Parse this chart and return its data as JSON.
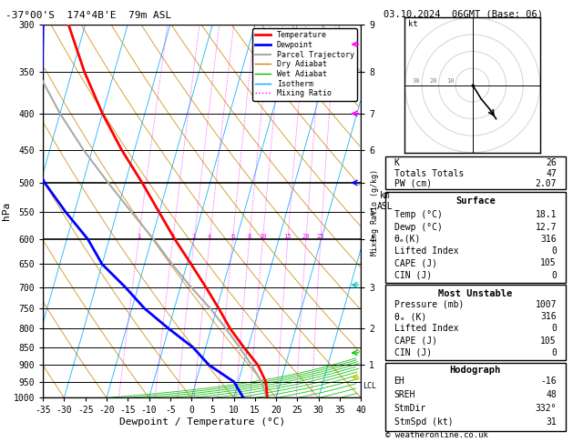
{
  "title_left": "-37°00'S  174°4B'E  79m ASL",
  "title_right": "03.10.2024  06GMT (Base: 06)",
  "xlabel": "Dewpoint / Temperature (°C)",
  "ylabel_left": "hPa",
  "pressure_levels": [
    300,
    350,
    400,
    450,
    500,
    550,
    600,
    650,
    700,
    750,
    800,
    850,
    900,
    950,
    1000
  ],
  "xmin": -35,
  "xmax": 40,
  "temp_profile_T": [
    18.1,
    16.5,
    13.5,
    9.0,
    4.5,
    0.5,
    -4.0,
    -9.0,
    -14.5,
    -20.0,
    -26.0,
    -33.0,
    -40.0,
    -47.0,
    -54.0
  ],
  "temp_profile_P": [
    1007,
    950,
    900,
    850,
    800,
    750,
    700,
    650,
    600,
    550,
    500,
    450,
    400,
    350,
    300
  ],
  "dewp_profile_T": [
    12.7,
    9.0,
    2.0,
    -3.0,
    -10.0,
    -17.0,
    -23.0,
    -30.0,
    -35.0,
    -42.0,
    -49.0,
    -55.0,
    -57.0,
    -57.0,
    -60.0
  ],
  "dewp_profile_P": [
    1007,
    950,
    900,
    850,
    800,
    750,
    700,
    650,
    600,
    550,
    500,
    450,
    400,
    350,
    300
  ],
  "parcel_T": [
    18.1,
    15.5,
    12.0,
    8.0,
    3.5,
    -1.5,
    -7.5,
    -13.5,
    -19.5,
    -26.5,
    -34.0,
    -42.0,
    -50.0,
    -58.0,
    -66.0
  ],
  "parcel_P": [
    1007,
    950,
    900,
    850,
    800,
    750,
    700,
    650,
    600,
    550,
    500,
    450,
    400,
    350,
    300
  ],
  "temp_color": "#ff0000",
  "dewp_color": "#0000ff",
  "parcel_color": "#aaaaaa",
  "dry_adiabat_color": "#cc8800",
  "wet_adiabat_color": "#00bb00",
  "isotherm_color": "#00aaff",
  "mixing_ratio_color": "#ff00ff",
  "background_color": "#ffffff",
  "skew_factor": 25,
  "mixing_ratio_values": [
    1,
    2,
    3,
    4,
    6,
    8,
    10,
    15,
    20,
    25
  ],
  "mixing_ratio_labels": [
    "1",
    "2",
    "3",
    "4",
    "6",
    "8",
    "10",
    "15",
    "20",
    "25"
  ],
  "lcl_pressure": 962,
  "wind_barbs": [
    {
      "p": 315,
      "color": "#ff00ff",
      "type": "arrow_right"
    },
    {
      "p": 400,
      "color": "#ff00ff",
      "type": "arrow_right"
    },
    {
      "p": 500,
      "color": "#0000ff",
      "type": "barb"
    },
    {
      "p": 700,
      "color": "#00cccc",
      "type": "zigzag"
    },
    {
      "p": 870,
      "color": "#00bb00",
      "type": "zigzag"
    },
    {
      "p": 930,
      "color": "#bbbb00",
      "type": "zigzag"
    }
  ],
  "stats": {
    "K": 26,
    "Totals_Totals": 47,
    "PW_cm": 2.07,
    "Surface_Temp": 18.1,
    "Surface_Dewp": 12.7,
    "theta_e_K": 316,
    "Lifted_Index": 0,
    "CAPE_J": 105,
    "CIN_J": 0,
    "MU_Pressure_mb": 1007,
    "MU_theta_e_K": 316,
    "MU_Lifted_Index": 0,
    "MU_CAPE_J": 105,
    "MU_CIN_J": 0,
    "EH": -16,
    "SREH": 48,
    "StmDir": 332,
    "StmSpd_kt": 31
  },
  "copyright": "© weatheronline.co.uk"
}
